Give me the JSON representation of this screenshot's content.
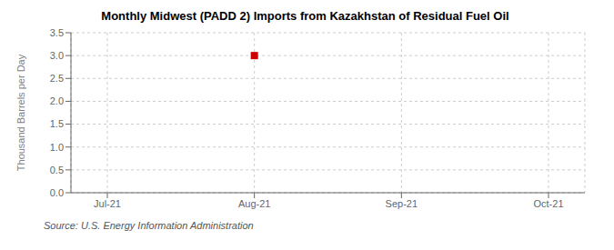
{
  "chart_data": {
    "type": "scatter",
    "title": "Monthly Midwest (PADD 2) Imports from Kazakhstan of Residual Fuel Oil",
    "ylabel": "Thousand Barrels per Day",
    "source": "Source: U.S. Energy Information Administration",
    "categories": [
      "Jul-21",
      "Aug-21",
      "Sep-21",
      "Oct-21"
    ],
    "values": [
      null,
      3.0,
      null,
      null
    ],
    "color": "#cc0000",
    "marker": "square",
    "ylim": [
      0,
      3.5
    ],
    "yticks": [
      {
        "value": 0,
        "label": "0.0"
      },
      0.5,
      {
        "value": 1,
        "label": "1.0"
      },
      1.5,
      {
        "value": 2,
        "label": "2.0"
      },
      2.5,
      {
        "value": 3,
        "label": "3.0"
      },
      3.5
    ],
    "grid": true
  }
}
